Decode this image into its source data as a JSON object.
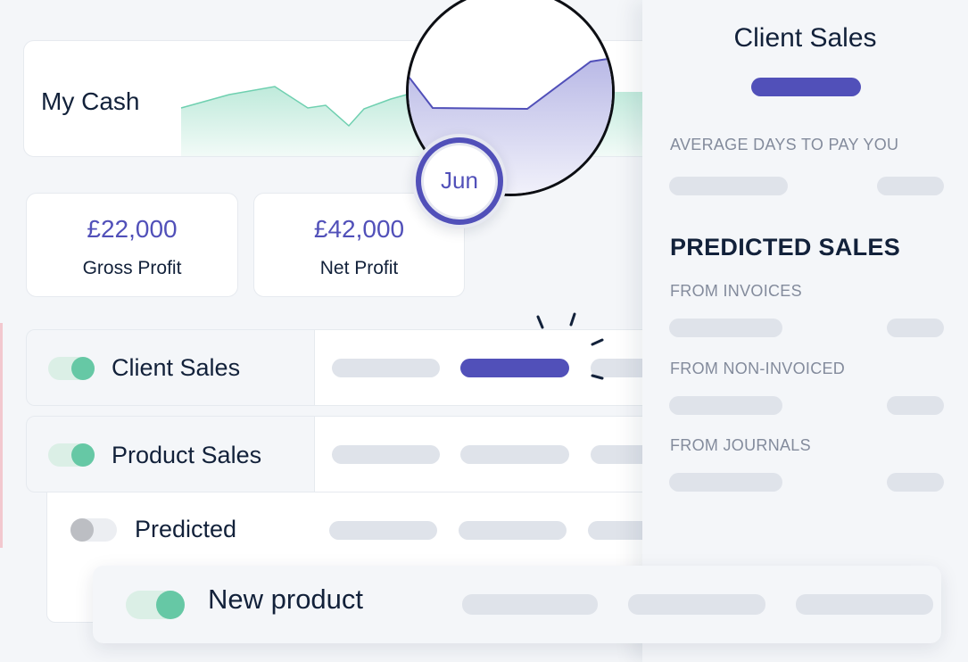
{
  "cash_card": {
    "title": "My Cash"
  },
  "zoom_badge": {
    "month": "Jun"
  },
  "stats": [
    {
      "value": "£22,000",
      "label": "Gross Profit"
    },
    {
      "value": "£42,000",
      "label": "Net Profit"
    }
  ],
  "rows": [
    {
      "label": "Client Sales",
      "toggle_on": true
    },
    {
      "label": "Product Sales",
      "toggle_on": true
    },
    {
      "label": "Predicted",
      "toggle_on": false
    }
  ],
  "new_product": {
    "label": "New product",
    "toggle_on": true
  },
  "panel": {
    "title": "Client Sales",
    "avg_days_label": "AVERAGE DAYS TO PAY YOU",
    "predicted_heading": "PREDICTED SALES",
    "from_invoices": "FROM INVOICES",
    "from_non_invoiced": "FROM NON-INVOICED",
    "from_journals": "FROM JOURNALS"
  },
  "colors": {
    "accent": "#5150b9",
    "toggle_on": "#66c8a5",
    "chart_line": "#6fd0b0",
    "text_dark": "#12213a",
    "placeholder": "#dfe3ea"
  }
}
